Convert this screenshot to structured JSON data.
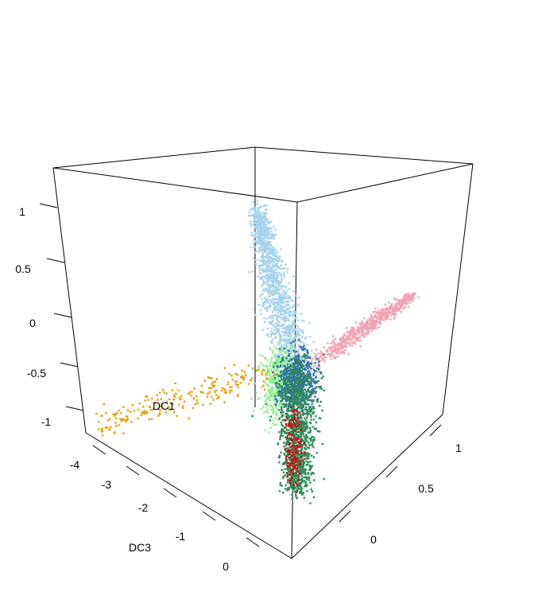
{
  "chart_data": {
    "type": "scatter",
    "dimensions": 3,
    "title": "",
    "axes": {
      "dc1": {
        "label": "DC1",
        "ticks": [
          "1",
          "0.5",
          "0",
          "-0.5",
          "-1"
        ],
        "range": [
          -1.2,
          1.25
        ]
      },
      "dc3": {
        "label": "DC3",
        "ticks": [
          "-4",
          "-3",
          "-2",
          "-1",
          "0"
        ],
        "range": [
          -4.4,
          0.4
        ]
      },
      "dc2": {
        "label": "",
        "ticks": [
          "1",
          "0.5",
          "0"
        ],
        "range": [
          -0.3,
          1.2
        ]
      }
    },
    "grid": false,
    "legend": "none",
    "series": [
      {
        "color": "#a6d3ec",
        "shape": "arm-upward",
        "approx_count": 1400
      },
      {
        "color": "#f0a3b4",
        "shape": "arm-toward-front-right",
        "approx_count": 650
      },
      {
        "color": "#e69f00",
        "shape": "arm-toward-left",
        "approx_count": 230
      },
      {
        "color": "#90ee90",
        "shape": "core",
        "approx_count": 420
      },
      {
        "color": "#2e6db4",
        "shape": "core",
        "approx_count": 520
      },
      {
        "color": "#2e8b57",
        "shape": "arm-downward",
        "approx_count": 1250
      },
      {
        "color": "#cc1010",
        "shape": "arm-downward",
        "approx_count": 150
      }
    ]
  }
}
